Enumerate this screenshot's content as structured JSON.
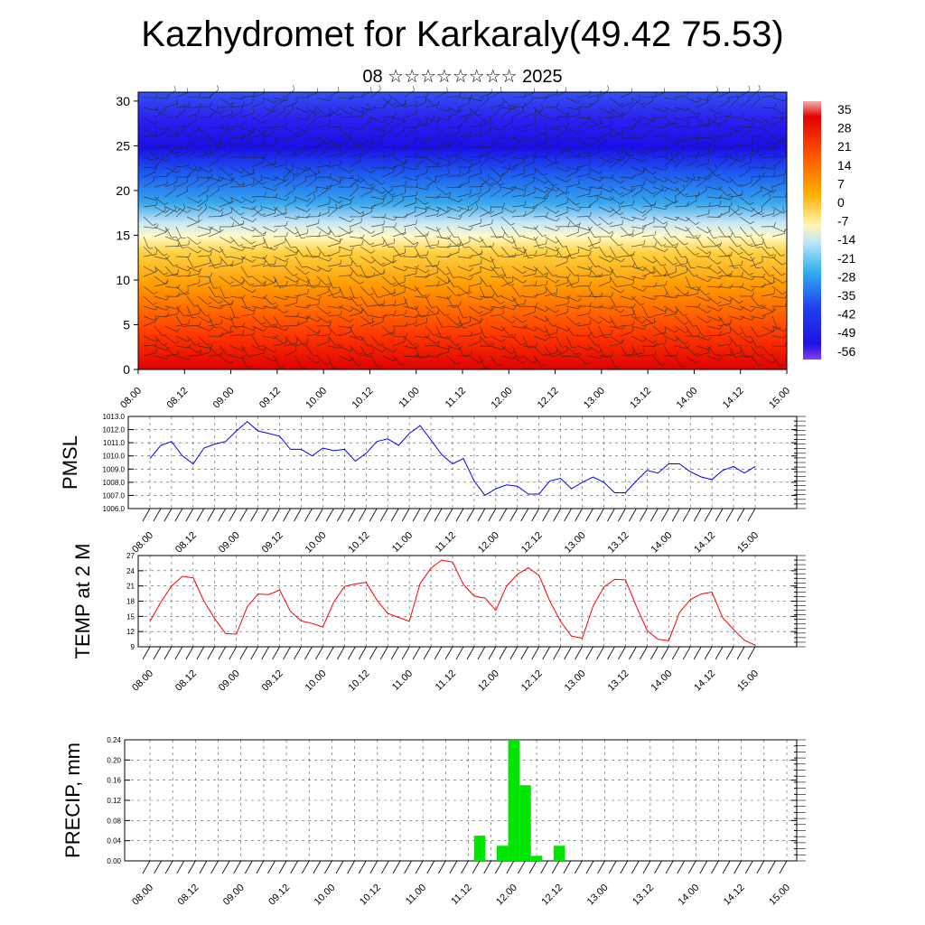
{
  "header": {
    "title": "Kazhydromet for Karkaraly(49.42 75.53)",
    "subtitle": "08 ☆☆☆☆☆☆☆☆ 2025"
  },
  "chart_data": [
    {
      "type": "heatmap",
      "title": "",
      "xlabel": "",
      "ylabel": "",
      "x_tick_labels": [
        "08.00",
        "08.12",
        "09.00",
        "09.12",
        "10.00",
        "10.12",
        "11.00",
        "11.12",
        "12.00",
        "12.12",
        "13.00",
        "13.12",
        "14.00",
        "14.12",
        "15.00"
      ],
      "y_ticks": [
        0,
        5,
        10,
        15,
        20,
        25,
        30
      ],
      "ylim": [
        0,
        31
      ],
      "colorbar_labels": [
        "35",
        "28",
        "21",
        "14",
        "7",
        "0",
        "-7",
        "-14",
        "-21",
        "-28",
        "-35",
        "-42",
        "-49",
        "-56"
      ],
      "colors": {
        "warm": "#e60000",
        "neutral": "#ffffc8",
        "cold": "#1010e6"
      },
      "overlay": "wind barbs"
    },
    {
      "type": "line",
      "ylabel": "PMSL",
      "ylim": [
        1006.0,
        1013.0
      ],
      "y_tick_labels": [
        "1006.0",
        "1007.0",
        "1008.0",
        "1009.0",
        "1010.0",
        "1011.0",
        "1012.0",
        "1013.0"
      ],
      "x_tick_labels": [
        "08.00",
        "08.12",
        "09.00",
        "09.12",
        "10.00",
        "10.12",
        "11.00",
        "11.12",
        "12.00",
        "12.12",
        "13.00",
        "13.12",
        "14.00",
        "14.12",
        "15.00"
      ],
      "grid": true,
      "color": "#0000ff",
      "values": [
        1009.8,
        1010.8,
        1011.1,
        1010.0,
        1009.4,
        1010.6,
        1010.9,
        1011.1,
        1011.9,
        1012.6,
        1011.9,
        1011.7,
        1011.5,
        1010.5,
        1010.5,
        1010.0,
        1010.6,
        1010.4,
        1010.5,
        1009.6,
        1010.2,
        1011.1,
        1011.3,
        1010.8,
        1011.7,
        1012.3,
        1011.2,
        1010.1,
        1009.4,
        1009.8,
        1008.1,
        1007.0,
        1007.5,
        1007.8,
        1007.7,
        1007.1,
        1007.1,
        1008.1,
        1008.3,
        1007.5,
        1008.0,
        1008.4,
        1008.0,
        1007.2,
        1007.2,
        1008.1,
        1008.9,
        1008.7,
        1009.4,
        1009.4,
        1008.8,
        1008.4,
        1008.2,
        1008.9,
        1009.2,
        1008.7,
        1009.2
      ]
    },
    {
      "type": "line",
      "ylabel": "TEMP at 2 M",
      "ylim": [
        9,
        27
      ],
      "y_tick_labels": [
        "9",
        "12",
        "15",
        "18",
        "21",
        "24",
        "27"
      ],
      "x_tick_labels": [
        "08.00",
        "08.12",
        "09.00",
        "09.12",
        "10.00",
        "10.12",
        "11.00",
        "11.12",
        "12.00",
        "12.12",
        "13.00",
        "13.12",
        "14.00",
        "14.12",
        "15.00"
      ],
      "grid": true,
      "color": "#ff0000",
      "values": [
        14.0,
        17.8,
        21.0,
        22.9,
        22.6,
        18.0,
        14.5,
        11.6,
        11.5,
        16.9,
        19.4,
        19.3,
        20.2,
        16.0,
        14.1,
        13.6,
        12.9,
        17.8,
        20.9,
        21.4,
        21.7,
        18.2,
        15.6,
        14.8,
        14.0,
        21.5,
        24.5,
        26.1,
        25.7,
        21.3,
        19.0,
        18.6,
        16.2,
        21.0,
        23.3,
        24.6,
        23.1,
        18.0,
        14.0,
        11.1,
        10.7,
        17.0,
        20.8,
        22.3,
        22.2,
        17.0,
        12.2,
        10.5,
        10.2,
        15.8,
        18.3,
        19.4,
        19.8,
        14.7,
        12.4,
        10.3,
        9.3
      ]
    },
    {
      "type": "bar",
      "ylabel": "PRECIP, mm",
      "ylim": [
        0,
        0.24
      ],
      "y_tick_labels": [
        "0.00",
        "0.04",
        "0.08",
        "0.12",
        "0.16",
        "0.20",
        "0.24"
      ],
      "x_tick_labels": [
        "08.00",
        "08.12",
        "09.00",
        "09.12",
        "10.00",
        "10.12",
        "11.00",
        "11.12",
        "12.00",
        "12.12",
        "13.00",
        "13.12",
        "14.00",
        "14.12",
        "15.00"
      ],
      "grid": true,
      "color": "#00e600",
      "values": [
        0,
        0,
        0,
        0,
        0,
        0,
        0,
        0,
        0,
        0,
        0,
        0,
        0,
        0,
        0,
        0,
        0,
        0,
        0,
        0,
        0,
        0,
        0,
        0,
        0,
        0,
        0,
        0,
        0,
        0.05,
        0,
        0.03,
        0.24,
        0.15,
        0.01,
        0,
        0.03,
        0,
        0,
        0,
        0,
        0,
        0,
        0,
        0,
        0,
        0,
        0,
        0,
        0,
        0,
        0,
        0,
        0,
        0,
        0,
        0
      ]
    }
  ]
}
